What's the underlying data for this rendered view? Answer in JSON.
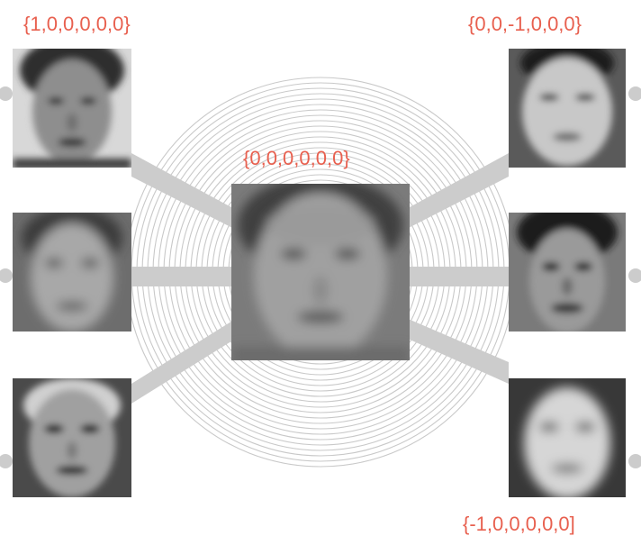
{
  "labels": {
    "top_left": "{1,0,0,0,0,0}",
    "center": "{0,0,0,0,0,0}",
    "top_right": "{0,0,-1,0,0,0}",
    "bottom_right": "{-1,0,0,0,0,0]"
  },
  "faces": {
    "center": "mean-face",
    "left": [
      "face-male-dark-hair",
      "face-soft-blur",
      "face-bald-light"
    ],
    "right": [
      "face-wide-bright",
      "face-dark-hair",
      "face-long-hair"
    ]
  },
  "colors": {
    "label": "#e8604f",
    "connector": "#cccccc",
    "ring": "#c9c9c9",
    "background": "#ffffff"
  }
}
